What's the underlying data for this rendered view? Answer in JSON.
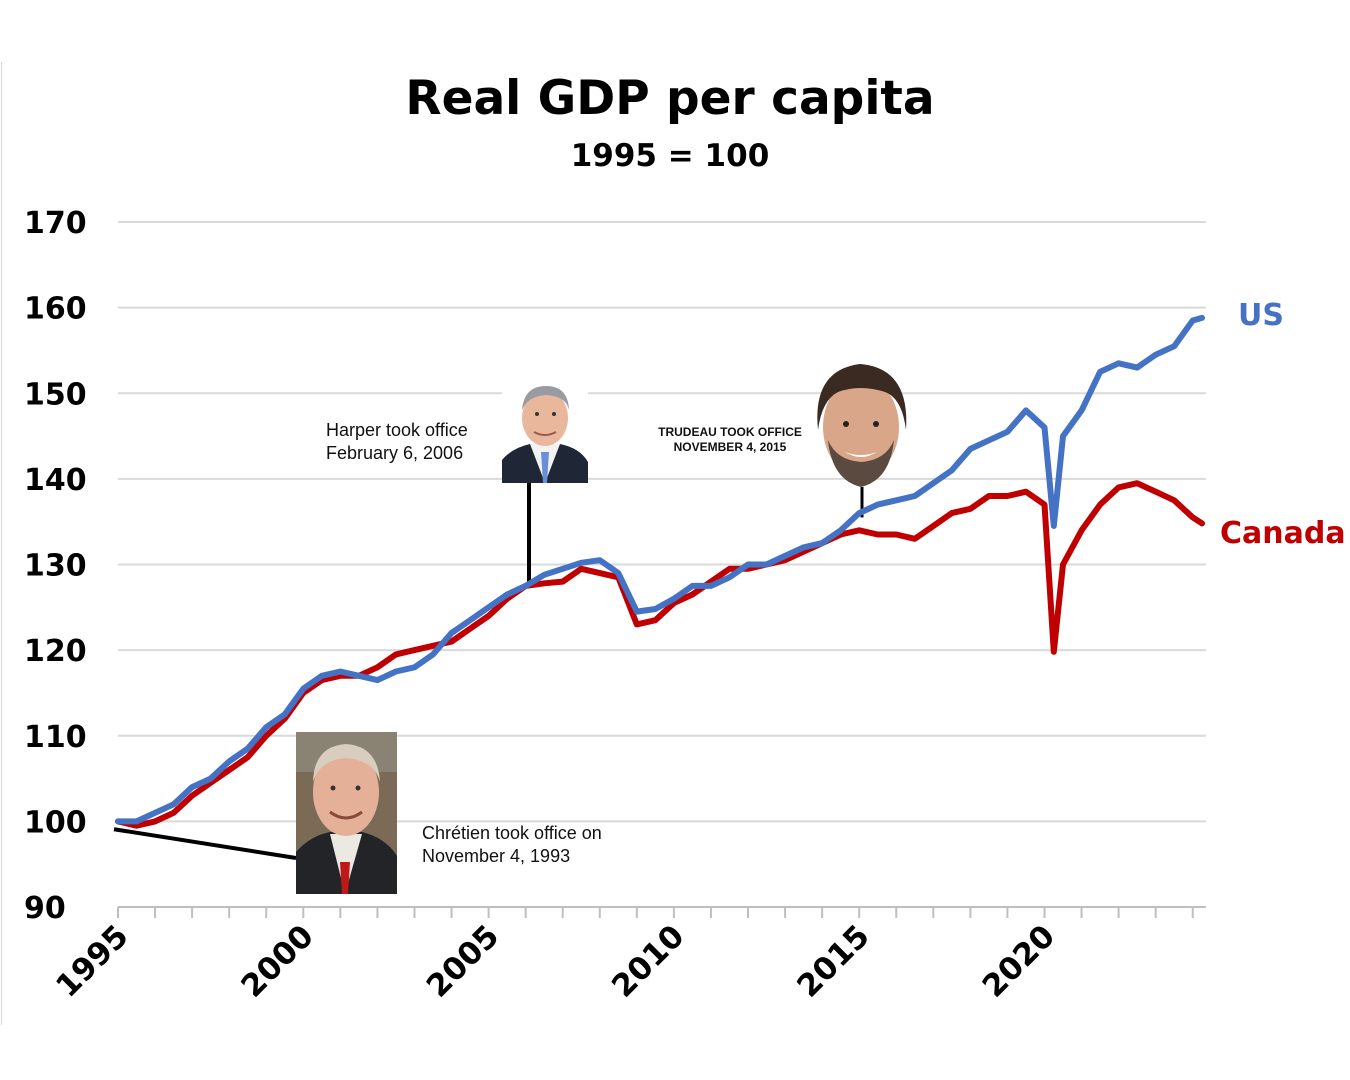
{
  "chart_data": {
    "type": "line",
    "title": "Real GDP per capita",
    "subtitle": "1995 = 100",
    "xlabel": "",
    "ylabel": "",
    "xlim": [
      1995,
      2024.25
    ],
    "ylim": [
      90,
      170
    ],
    "y_ticks": [
      "90",
      "100",
      "110",
      "120",
      "130",
      "140",
      "150",
      "160",
      "170"
    ],
    "x_ticks": [
      "1995",
      "2000",
      "2005",
      "2010",
      "2015",
      "2020"
    ],
    "grid": "horizontal",
    "colors": {
      "US": "#4472c4",
      "Canada": "#c00000"
    },
    "series": [
      {
        "name": "US",
        "color": "#4472c4",
        "points": [
          [
            1995,
            100
          ],
          [
            1995.5,
            100
          ],
          [
            1996,
            101
          ],
          [
            1996.5,
            102
          ],
          [
            1997,
            104
          ],
          [
            1997.5,
            105
          ],
          [
            1998,
            107
          ],
          [
            1998.5,
            108.5
          ],
          [
            1999,
            111
          ],
          [
            1999.5,
            112.5
          ],
          [
            2000,
            115.5
          ],
          [
            2000.5,
            117
          ],
          [
            2001,
            117.5
          ],
          [
            2001.5,
            117
          ],
          [
            2002,
            116.5
          ],
          [
            2002.5,
            117.5
          ],
          [
            2003,
            118
          ],
          [
            2003.5,
            119.5
          ],
          [
            2004,
            122
          ],
          [
            2004.5,
            123.5
          ],
          [
            2005,
            125
          ],
          [
            2005.5,
            126.5
          ],
          [
            2006,
            127.5
          ],
          [
            2006.5,
            128.8
          ],
          [
            2007,
            129.5
          ],
          [
            2007.5,
            130.2
          ],
          [
            2008,
            130.5
          ],
          [
            2008.5,
            129
          ],
          [
            2009,
            124.5
          ],
          [
            2009.5,
            124.8
          ],
          [
            2010,
            126
          ],
          [
            2010.5,
            127.5
          ],
          [
            2011,
            127.5
          ],
          [
            2011.5,
            128.5
          ],
          [
            2012,
            130
          ],
          [
            2012.5,
            130
          ],
          [
            2013,
            131
          ],
          [
            2013.5,
            132
          ],
          [
            2014,
            132.5
          ],
          [
            2014.5,
            134
          ],
          [
            2015,
            136
          ],
          [
            2015.5,
            137
          ],
          [
            2016,
            137.5
          ],
          [
            2016.5,
            138
          ],
          [
            2017,
            139.5
          ],
          [
            2017.5,
            141
          ],
          [
            2018,
            143.5
          ],
          [
            2018.5,
            144.5
          ],
          [
            2019,
            145.5
          ],
          [
            2019.5,
            148
          ],
          [
            2020,
            146
          ],
          [
            2020.25,
            134.5
          ],
          [
            2020.5,
            145
          ],
          [
            2021,
            148
          ],
          [
            2021.5,
            152.5
          ],
          [
            2022,
            153.5
          ],
          [
            2022.5,
            153
          ],
          [
            2023,
            154.5
          ],
          [
            2023.5,
            155.5
          ],
          [
            2024,
            158.5
          ],
          [
            2024.25,
            158.8
          ]
        ]
      },
      {
        "name": "Canada",
        "color": "#c00000",
        "points": [
          [
            1995,
            100
          ],
          [
            1995.5,
            99.5
          ],
          [
            1996,
            100
          ],
          [
            1996.5,
            101
          ],
          [
            1997,
            103
          ],
          [
            1997.5,
            104.5
          ],
          [
            1998,
            106
          ],
          [
            1998.5,
            107.5
          ],
          [
            1999,
            110
          ],
          [
            1999.5,
            112
          ],
          [
            2000,
            115
          ],
          [
            2000.5,
            116.5
          ],
          [
            2001,
            117
          ],
          [
            2001.5,
            117
          ],
          [
            2002,
            118
          ],
          [
            2002.5,
            119.5
          ],
          [
            2003,
            120
          ],
          [
            2003.5,
            120.5
          ],
          [
            2004,
            121
          ],
          [
            2004.5,
            122.5
          ],
          [
            2005,
            124
          ],
          [
            2005.5,
            126
          ],
          [
            2006,
            127.5
          ],
          [
            2006.5,
            127.8
          ],
          [
            2007,
            128
          ],
          [
            2007.5,
            129.5
          ],
          [
            2008,
            129
          ],
          [
            2008.5,
            128.5
          ],
          [
            2009,
            123
          ],
          [
            2009.5,
            123.5
          ],
          [
            2010,
            125.5
          ],
          [
            2010.5,
            126.5
          ],
          [
            2011,
            128
          ],
          [
            2011.5,
            129.5
          ],
          [
            2012,
            129.5
          ],
          [
            2012.5,
            130
          ],
          [
            2013,
            130.5
          ],
          [
            2013.5,
            131.5
          ],
          [
            2014,
            132.5
          ],
          [
            2014.5,
            133.5
          ],
          [
            2015,
            134
          ],
          [
            2015.5,
            133.5
          ],
          [
            2016,
            133.5
          ],
          [
            2016.5,
            133
          ],
          [
            2017,
            134.5
          ],
          [
            2017.5,
            136
          ],
          [
            2018,
            136.5
          ],
          [
            2018.5,
            138
          ],
          [
            2019,
            138
          ],
          [
            2019.5,
            138.5
          ],
          [
            2020,
            137
          ],
          [
            2020.25,
            119.8
          ],
          [
            2020.5,
            130
          ],
          [
            2021,
            134
          ],
          [
            2021.5,
            137
          ],
          [
            2022,
            139
          ],
          [
            2022.5,
            139.5
          ],
          [
            2023,
            138.5
          ],
          [
            2023.5,
            137.5
          ],
          [
            2024,
            135.5
          ],
          [
            2024.25,
            134.8
          ]
        ]
      }
    ],
    "annotations": [
      {
        "id": "chretien",
        "lines": [
          "Chrétien took office on",
          "November 4, 1993"
        ],
        "anchor": [
          1995,
          99.2
        ]
      },
      {
        "id": "harper",
        "lines": [
          "Harper took office",
          "February 6, 2006"
        ],
        "anchor": [
          2006.1,
          127.8
        ]
      },
      {
        "id": "trudeau",
        "lines": [
          "TRUDEAU TOOK OFFICE",
          "NOVEMBER 4, 2015"
        ],
        "anchor": [
          2015,
          135.5
        ]
      }
    ]
  }
}
